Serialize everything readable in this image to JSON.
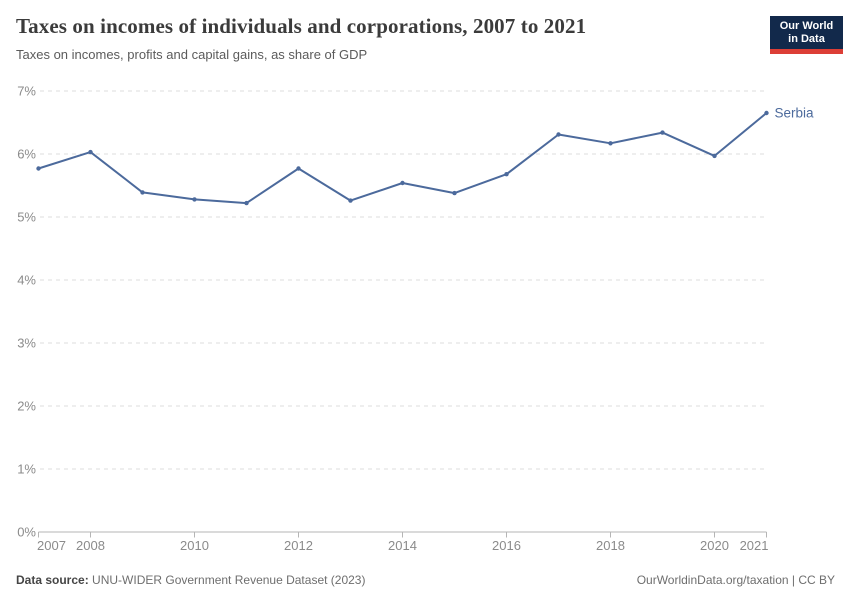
{
  "header": {
    "title": "Taxes on incomes of individuals and corporations, 2007 to 2021",
    "subtitle": "Taxes on incomes, profits and capital gains, as share of GDP"
  },
  "logo": {
    "line1": "Our World",
    "line2": "in Data"
  },
  "chart_data": {
    "type": "line",
    "title": "Taxes on incomes of individuals and corporations, 2007 to 2021",
    "subtitle": "Taxes on incomes, profits and capital gains, as share of GDP",
    "xlabel": "",
    "ylabel": "",
    "x": [
      2007,
      2008,
      2009,
      2010,
      2011,
      2012,
      2013,
      2014,
      2015,
      2016,
      2017,
      2018,
      2019,
      2020,
      2021
    ],
    "series": [
      {
        "name": "Serbia",
        "color": "#4C6A9C",
        "values": [
          5.77,
          6.03,
          5.39,
          5.28,
          5.22,
          5.77,
          5.26,
          5.54,
          5.38,
          5.68,
          6.31,
          6.17,
          6.34,
          5.97,
          6.65
        ]
      }
    ],
    "ylim": [
      0,
      7
    ],
    "yticks": [
      0,
      1,
      2,
      3,
      4,
      5,
      6,
      7
    ],
    "ytick_suffix": "%",
    "xticks": [
      2007,
      2008,
      2010,
      2012,
      2014,
      2016,
      2018,
      2020,
      2021
    ],
    "grid": true,
    "legend": "end-of-line-label"
  },
  "colors": {
    "line": "#4C6A9C",
    "grid": "#dedede",
    "axis": "#b5b5b5",
    "tick_label": "#8b8b8b",
    "logo_bg": "#12294B",
    "logo_red": "#DC3E36"
  },
  "footer": {
    "source_label": "Data source:",
    "source_value": " UNU-WIDER Government Revenue Dataset (2023)",
    "right": "OurWorldinData.org/taxation | CC BY"
  }
}
